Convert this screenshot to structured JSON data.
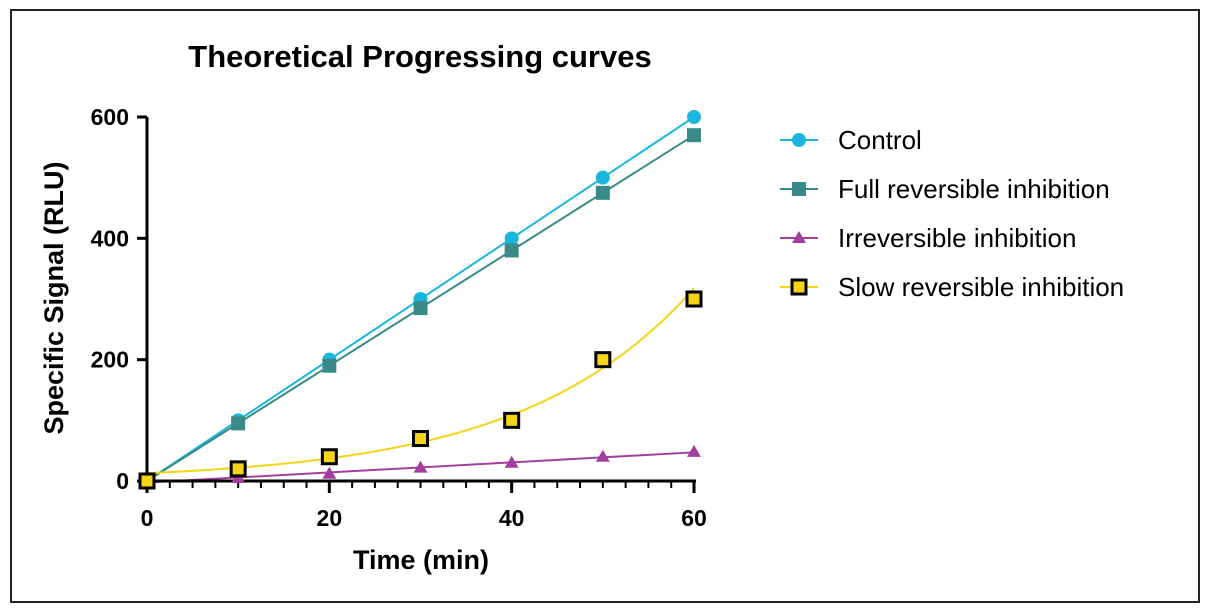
{
  "chart_data": {
    "type": "line",
    "title": "Theoretical Progressing curves",
    "xlabel": "Time (min)",
    "ylabel": "Specific Signal (RLU)",
    "xlim": [
      0,
      60
    ],
    "ylim": [
      0,
      600
    ],
    "x_ticks": [
      "0",
      "20",
      "40",
      "60"
    ],
    "y_ticks": [
      "0",
      "200",
      "400",
      "600"
    ],
    "x_minor_step": 2.5,
    "x_values": [
      0,
      10,
      20,
      30,
      40,
      50,
      60
    ],
    "grid": false,
    "legend_position": "right",
    "series": [
      {
        "name": "Control",
        "values": [
          0,
          100,
          200,
          300,
          400,
          500,
          600
        ],
        "color": "#1ab6dd",
        "marker": "circle",
        "fit": "linear"
      },
      {
        "name": "Full reversible inhibition",
        "values": [
          0,
          95,
          190,
          285,
          380,
          475,
          570
        ],
        "color": "#3a8b87",
        "marker": "square",
        "fit": "linear"
      },
      {
        "name": "Irreversible inhibition",
        "values": [
          0,
          5,
          12,
          22,
          30,
          40,
          48
        ],
        "color": "#a43e9e",
        "marker": "triangle",
        "fit": "linear"
      },
      {
        "name": "Slow reversible inhibition",
        "values": [
          0,
          20,
          40,
          70,
          100,
          200,
          300
        ],
        "color": "#f5d418",
        "marker": "open-square",
        "fit": "exponential"
      }
    ]
  }
}
